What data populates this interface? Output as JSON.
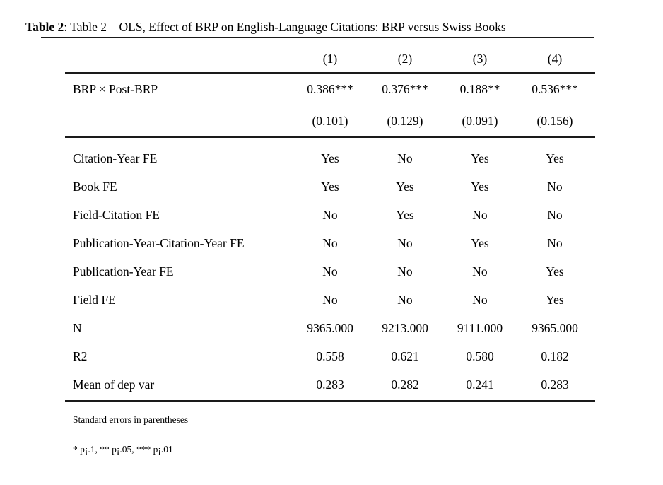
{
  "title": {
    "prefix": "Table 2",
    "rest": ": Table 2—OLS, Effect of BRP on English-Language Citations: BRP versus Swiss Books"
  },
  "table": {
    "column_headers": [
      "(1)",
      "(2)",
      "(3)",
      "(4)"
    ],
    "coefficient_row": {
      "label": "BRP × Post-BRP",
      "values": [
        "0.386***",
        "0.376***",
        "0.188**",
        "0.536***"
      ]
    },
    "se_row": {
      "values": [
        "(0.101)",
        "(0.129)",
        "(0.091)",
        "(0.156)"
      ]
    },
    "body_rows": [
      {
        "label": "Citation-Year FE",
        "values": [
          "Yes",
          "No",
          "Yes",
          "Yes"
        ]
      },
      {
        "label": "Book FE",
        "values": [
          "Yes",
          "Yes",
          "Yes",
          "No"
        ]
      },
      {
        "label": "Field-Citation FE",
        "values": [
          "No",
          "Yes",
          "No",
          "No"
        ]
      },
      {
        "label": "Publication-Year-Citation-Year FE",
        "values": [
          "No",
          "No",
          "Yes",
          "No"
        ]
      },
      {
        "label": "Publication-Year FE",
        "values": [
          "No",
          "No",
          "No",
          "Yes"
        ]
      },
      {
        "label": "Field FE",
        "values": [
          "No",
          "No",
          "No",
          "Yes"
        ]
      },
      {
        "label": "N",
        "values": [
          "9365.000",
          "9213.000",
          "9111.000",
          "9365.000"
        ]
      },
      {
        "label": "R2",
        "values": [
          "0.558",
          "0.621",
          "0.580",
          "0.182"
        ]
      },
      {
        "label": "Mean of dep var",
        "values": [
          "0.283",
          "0.282",
          "0.241",
          "0.283"
        ]
      }
    ],
    "notes": {
      "se_note": "Standard errors in parentheses",
      "sig_note": "* p¡.1, ** p¡.05, *** p¡.01"
    }
  }
}
